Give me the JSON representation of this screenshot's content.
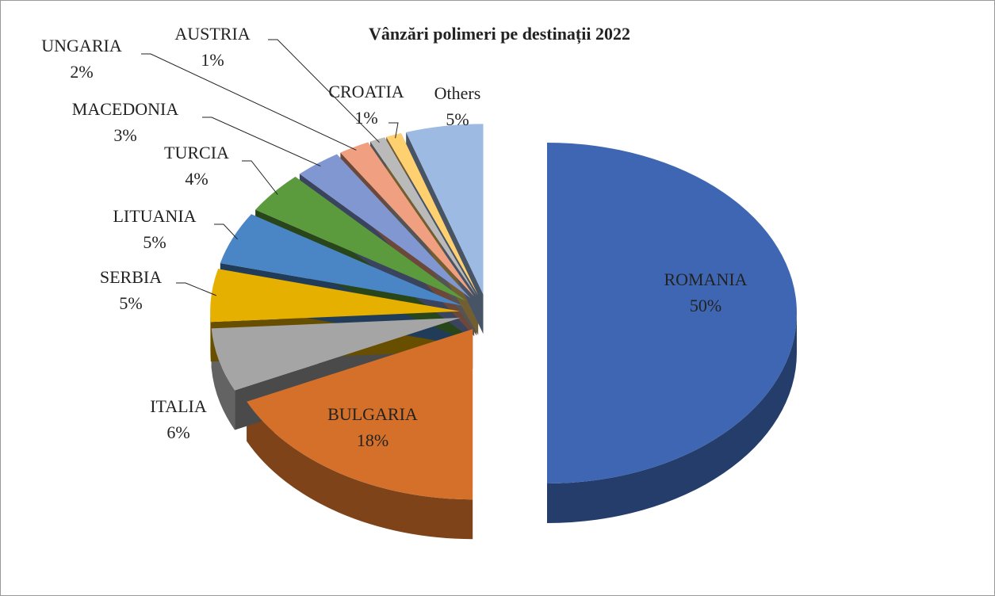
{
  "chart_data": {
    "type": "pie3d",
    "title": "Vânzări polimeri pe destinații 2022",
    "categories": [
      "ROMANIA",
      "BULGARIA",
      "ITALIA",
      "SERBIA",
      "LITUANIA",
      "TURCIA",
      "MACEDONIA",
      "UNGARIA",
      "AUSTRIA",
      "CROATIA",
      "Others"
    ],
    "values": [
      50,
      18,
      6,
      5,
      5,
      4,
      3,
      2,
      1,
      1,
      5
    ],
    "value_labels": [
      "50%",
      "18%",
      "6%",
      "5%",
      "5%",
      "4%",
      "3%",
      "2%",
      "1%",
      "1%",
      "5%"
    ],
    "colors": [
      "#3e66b2",
      "#d4702a",
      "#a5a5a5",
      "#e6b000",
      "#4a86c5",
      "#5b9b3d",
      "#8197d2",
      "#f0a080",
      "#bababa",
      "#ffd070",
      "#9dbae2"
    ]
  }
}
